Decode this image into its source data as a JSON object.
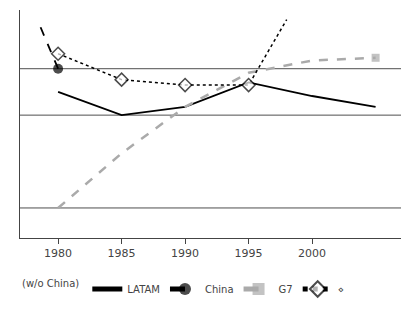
{
  "chart_data": {
    "type": "line",
    "xlim": [
      1977,
      2007
    ],
    "xticks": [
      1980,
      1985,
      1990,
      1995,
      2000
    ],
    "ylim": [
      -0.52,
      1.15
    ],
    "yticks": [],
    "tick_labels": "x",
    "grid": false,
    "legend": "bottom",
    "legend_title": "(w/o China)",
    "background_color": "#ffffff",
    "reference_lines": [
      0.72,
      0.38,
      -0.3
    ],
    "series": [
      {
        "name": "LATAM",
        "color": "#000000",
        "line_style": "solid",
        "x": [
          1980,
          1985,
          1990,
          1995,
          2000,
          2005
        ],
        "values": [
          0.55,
          0.38,
          0.44,
          0.62,
          0.52,
          0.44
        ]
      },
      {
        "name": "China",
        "color": "#000000",
        "line_style": "dash",
        "marker": "circle",
        "x": [
          1980,
          1978.5
        ],
        "values": [
          0.72,
          1.05
        ],
        "marker_x": [
          1980
        ]
      },
      {
        "name": "G7",
        "color": "#aaaaaa",
        "line_style": "dash",
        "marker": "square",
        "x": [
          1980,
          1985,
          1990,
          1995,
          2000,
          2005
        ],
        "values": [
          -0.3,
          0.1,
          0.44,
          0.69,
          0.78,
          0.8
        ],
        "marker_x": [
          2005
        ]
      },
      {
        "name": "⋄",
        "color": "#000000",
        "line_style": "dot",
        "marker": "open diamond",
        "x": [
          1980,
          1985,
          1990,
          1995,
          1998
        ],
        "values": [
          0.83,
          0.64,
          0.6,
          0.6,
          1.08
        ],
        "marker_x": [
          1980,
          1985,
          1990,
          1995
        ]
      }
    ]
  }
}
